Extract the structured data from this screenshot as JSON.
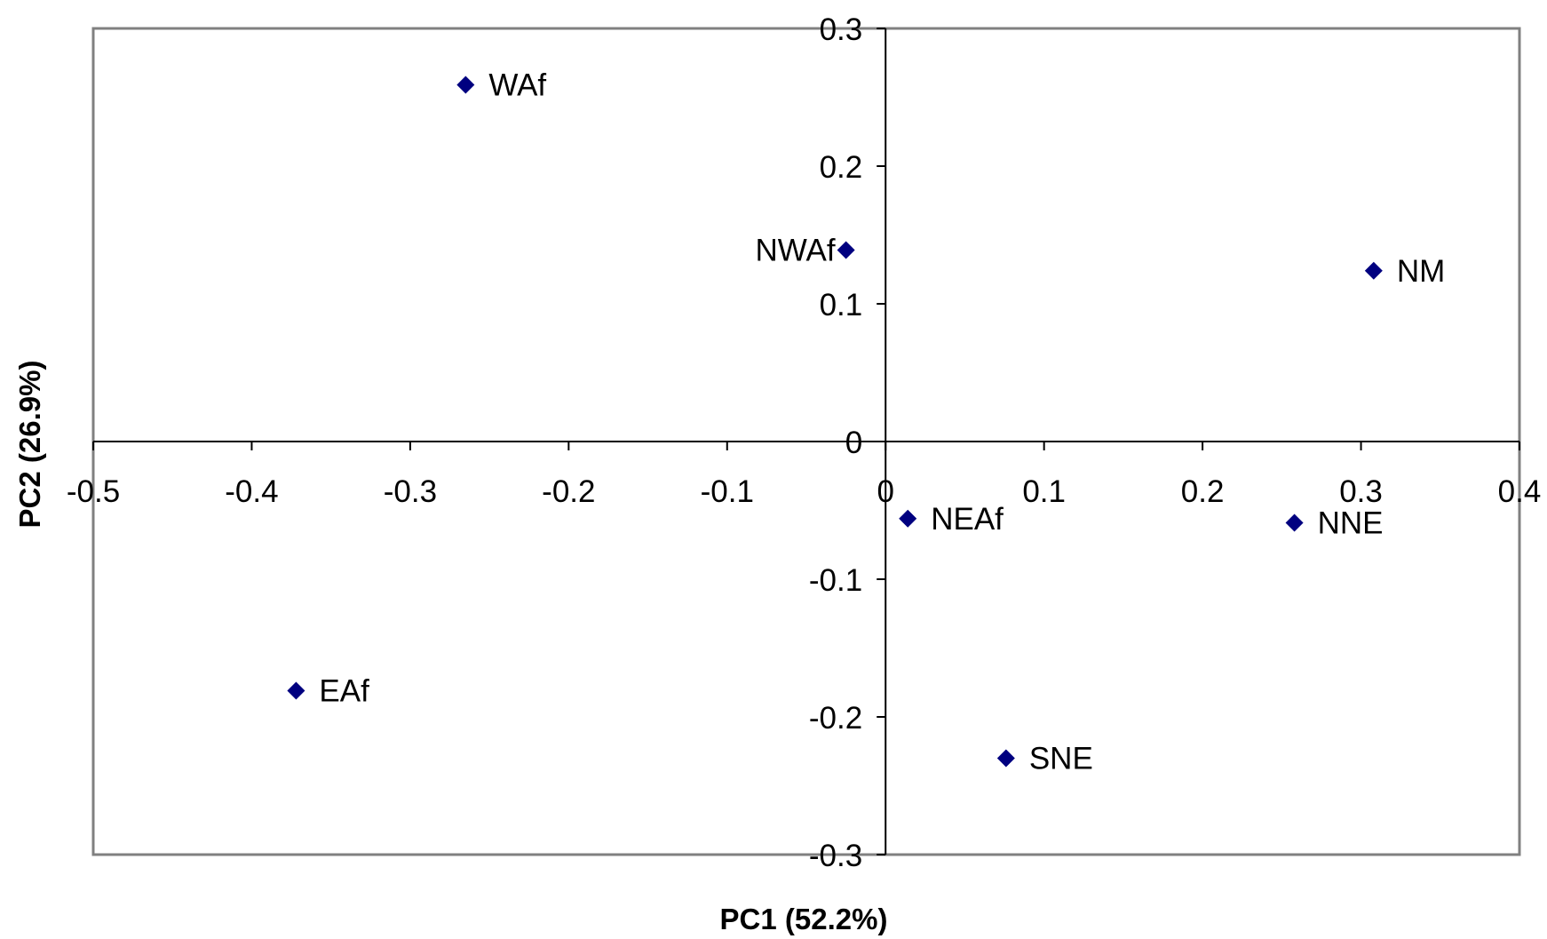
{
  "chart_data": {
    "type": "scatter",
    "title": "",
    "xlabel": "PC1 (52.2%)",
    "ylabel": "PC2 (26.9%)",
    "xlim": [
      -0.5,
      0.4
    ],
    "ylim": [
      -0.3,
      0.3
    ],
    "xticks": [
      -0.5,
      -0.4,
      -0.3,
      -0.2,
      -0.1,
      0,
      0.1,
      0.2,
      0.3,
      0.4
    ],
    "yticks": [
      -0.3,
      -0.2,
      -0.1,
      0,
      0.1,
      0.2,
      0.3
    ],
    "xtick_labels": [
      "-0.5",
      "-0.4",
      "-0.3",
      "-0.2",
      "-0.1",
      "0",
      "0.1",
      "0.2",
      "0.3",
      "0.4"
    ],
    "ytick_labels": [
      "-0.3",
      "-0.2",
      "-0.1",
      "0",
      "0.1",
      "0.2",
      "0.3"
    ],
    "grid": false,
    "marker": "diamond",
    "marker_color": "#000080",
    "points": [
      {
        "label": "WAf",
        "x": -0.265,
        "y": 0.259
      },
      {
        "label": "NWAf",
        "x": -0.025,
        "y": 0.139
      },
      {
        "label": "NM",
        "x": 0.308,
        "y": 0.124
      },
      {
        "label": "NEAf",
        "x": 0.014,
        "y": -0.056
      },
      {
        "label": "NNE",
        "x": 0.258,
        "y": -0.059
      },
      {
        "label": "EAf",
        "x": -0.372,
        "y": -0.181
      },
      {
        "label": "SNE",
        "x": 0.076,
        "y": -0.23
      }
    ],
    "label_side": {
      "NWAf": "left"
    }
  }
}
